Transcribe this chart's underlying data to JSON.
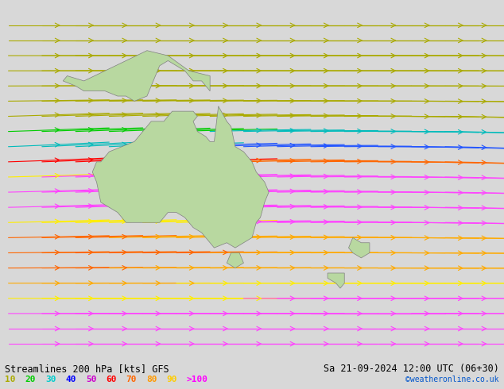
{
  "title_left": "Streamlines 200 hPa [kts] GFS",
  "title_right": "Sa 21-09-2024 12:00 UTC (06+30)",
  "credit": "©weatheronline.co.uk",
  "legend_values": [
    "10",
    "20",
    "30",
    "40",
    "50",
    "60",
    "70",
    "80",
    "90",
    ">100"
  ],
  "legend_colors": [
    "#aaaa00",
    "#00cc00",
    "#00cccc",
    "#0000ff",
    "#cc00cc",
    "#ff0000",
    "#ff6600",
    "#ff9900",
    "#ffcc00",
    "#ff00ff"
  ],
  "background_color": "#d0d0d0",
  "map_bg": "#e8e8e8",
  "land_color": "#c8c8c8",
  "australia_color": "#b0d890",
  "fig_width": 6.34,
  "fig_height": 4.9,
  "dpi": 100,
  "speed_colors": {
    "10": "#aaaa00",
    "20": "#00cc00",
    "30": "#00bbbb",
    "40": "#0000ff",
    "50": "#8800cc",
    "60": "#ff0000",
    "70": "#ff6600",
    "80": "#ffaa00",
    "90": "#ffdd00",
    "100": "#ff44ff"
  }
}
